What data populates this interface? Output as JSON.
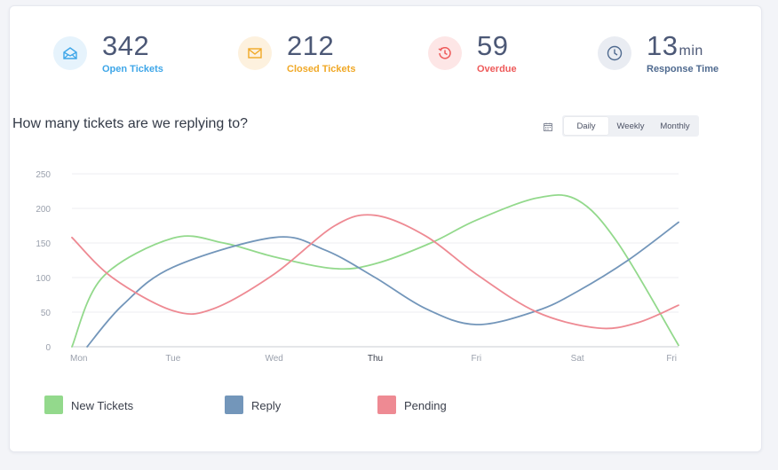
{
  "stats": [
    {
      "value": "342",
      "unit": "",
      "label": "Open Tickets",
      "color": "#3ea6e8",
      "bg": "#e6f3fc",
      "icon": "envelope-open-icon"
    },
    {
      "value": "212",
      "unit": "",
      "label": "Closed Tickets",
      "color": "#f0a826",
      "bg": "#fdf1de",
      "icon": "envelope-icon"
    },
    {
      "value": "59",
      "unit": "",
      "label": "Overdue",
      "color": "#ee5a5a",
      "bg": "#fde6e6",
      "icon": "history-icon"
    },
    {
      "value": "13",
      "unit": "min",
      "label": "Response Time",
      "color": "#4f6a8f",
      "bg": "#e9ecf2",
      "icon": "clock-icon"
    }
  ],
  "chart_title": "How many tickets are we replying to?",
  "tabs": [
    {
      "label": "Daily",
      "active": true
    },
    {
      "label": "Weekly",
      "active": false
    },
    {
      "label": "Monthly",
      "active": false
    }
  ],
  "chart_data": {
    "type": "line",
    "title": "How many tickets are we replying to?",
    "categories": [
      "Mon",
      "Tue",
      "Wed",
      "Thu",
      "Fri",
      "Sat",
      "Fri"
    ],
    "highlight_category_index": 3,
    "ylim": [
      0,
      250
    ],
    "yticks": [
      0,
      50,
      100,
      150,
      200,
      250
    ],
    "grid": true,
    "curve": "smooth",
    "legend_position": "bottom-left",
    "series": [
      {
        "name": "New Tickets",
        "color": "#93d98c",
        "points": [
          [
            0,
            0
          ],
          [
            0.3,
            100
          ],
          [
            1,
            157
          ],
          [
            1.5,
            150
          ],
          [
            2,
            130
          ],
          [
            2.6,
            113
          ],
          [
            3,
            120
          ],
          [
            3.55,
            150
          ],
          [
            4,
            183
          ],
          [
            4.6,
            215
          ],
          [
            5,
            212
          ],
          [
            5.4,
            150
          ],
          [
            6,
            2
          ]
        ]
      },
      {
        "name": "Reply",
        "color": "#7396ba",
        "points": [
          [
            0.15,
            0
          ],
          [
            0.5,
            60
          ],
          [
            1,
            115
          ],
          [
            2,
            158
          ],
          [
            2.5,
            140
          ],
          [
            3,
            100
          ],
          [
            3.5,
            55
          ],
          [
            4,
            32
          ],
          [
            4.6,
            52
          ],
          [
            5,
            80
          ],
          [
            5.5,
            125
          ],
          [
            6,
            180
          ]
        ]
      },
      {
        "name": "Pending",
        "color": "#ee8a93",
        "points": [
          [
            0,
            158
          ],
          [
            0.4,
            100
          ],
          [
            1,
            52
          ],
          [
            1.4,
            55
          ],
          [
            2,
            105
          ],
          [
            2.6,
            175
          ],
          [
            3,
            190
          ],
          [
            3.5,
            160
          ],
          [
            4,
            105
          ],
          [
            4.6,
            50
          ],
          [
            5.2,
            27
          ],
          [
            5.6,
            35
          ],
          [
            6,
            60
          ]
        ]
      }
    ]
  }
}
